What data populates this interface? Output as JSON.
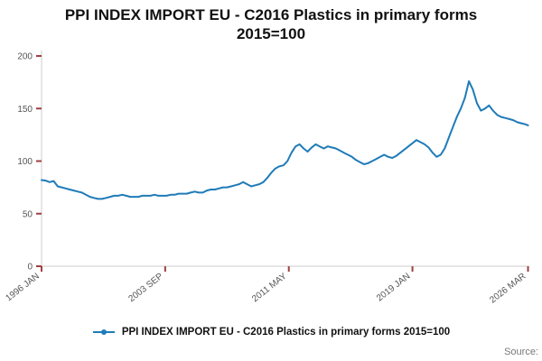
{
  "chart": {
    "title_line1": "PPI INDEX IMPORT EU - C2016 Plastics in primary forms",
    "title_line2": "2015=100",
    "source_label": "Source:"
  },
  "chart_data": {
    "type": "line",
    "title": "PPI INDEX IMPORT EU - C2016 Plastics in primary forms 2015=100",
    "legend": "PPI INDEX IMPORT EU - C2016 Plastics in primary forms 2015=100",
    "line_color": "#1f7bb8",
    "tick_color": "#a04040",
    "axis_color": "#cccccc",
    "grid": false,
    "legend_position": "bottom",
    "xlabel": "",
    "ylabel": "",
    "xlim": [
      1996.0,
      2026.25
    ],
    "ylim": [
      0,
      200
    ],
    "y_ticks": [
      0,
      50,
      100,
      150,
      200
    ],
    "x_ticks": [
      {
        "x": 1996.0,
        "label": "1996 JAN"
      },
      {
        "x": 2003.667,
        "label": "2003 SEP"
      },
      {
        "x": 2011.333,
        "label": "2011 MAY"
      },
      {
        "x": 2019.0,
        "label": "2019 JAN"
      },
      {
        "x": 2026.167,
        "label": "2026 MAR"
      }
    ],
    "points": [
      [
        1996.0,
        82
      ],
      [
        1996.25,
        81.5
      ],
      [
        1996.5,
        80
      ],
      [
        1996.75,
        81
      ],
      [
        1997.0,
        76
      ],
      [
        1997.25,
        75
      ],
      [
        1997.5,
        74
      ],
      [
        1997.75,
        73
      ],
      [
        1998.0,
        72
      ],
      [
        1998.25,
        71
      ],
      [
        1998.5,
        70
      ],
      [
        1998.75,
        68
      ],
      [
        1999.0,
        66
      ],
      [
        1999.25,
        65
      ],
      [
        1999.5,
        64
      ],
      [
        1999.75,
        64
      ],
      [
        2000.0,
        65
      ],
      [
        2000.25,
        66
      ],
      [
        2000.5,
        67
      ],
      [
        2000.75,
        67
      ],
      [
        2001.0,
        68
      ],
      [
        2001.25,
        67
      ],
      [
        2001.5,
        66
      ],
      [
        2001.75,
        66
      ],
      [
        2002.0,
        66
      ],
      [
        2002.25,
        67
      ],
      [
        2002.5,
        67
      ],
      [
        2002.75,
        67
      ],
      [
        2003.0,
        68
      ],
      [
        2003.25,
        67
      ],
      [
        2003.5,
        67
      ],
      [
        2003.75,
        67
      ],
      [
        2004.0,
        68
      ],
      [
        2004.25,
        68
      ],
      [
        2004.5,
        69
      ],
      [
        2004.75,
        69
      ],
      [
        2005.0,
        69
      ],
      [
        2005.25,
        70
      ],
      [
        2005.5,
        71
      ],
      [
        2005.75,
        70
      ],
      [
        2006.0,
        70
      ],
      [
        2006.25,
        72
      ],
      [
        2006.5,
        73
      ],
      [
        2006.75,
        73
      ],
      [
        2007.0,
        74
      ],
      [
        2007.25,
        75
      ],
      [
        2007.5,
        75
      ],
      [
        2007.75,
        76
      ],
      [
        2008.0,
        77
      ],
      [
        2008.25,
        78
      ],
      [
        2008.5,
        80
      ],
      [
        2008.75,
        78
      ],
      [
        2009.0,
        76
      ],
      [
        2009.25,
        77
      ],
      [
        2009.5,
        78
      ],
      [
        2009.75,
        80
      ],
      [
        2010.0,
        84
      ],
      [
        2010.25,
        89
      ],
      [
        2010.5,
        93
      ],
      [
        2010.75,
        95
      ],
      [
        2011.0,
        96
      ],
      [
        2011.25,
        100
      ],
      [
        2011.5,
        108
      ],
      [
        2011.75,
        114
      ],
      [
        2012.0,
        116
      ],
      [
        2012.25,
        112
      ],
      [
        2012.5,
        109
      ],
      [
        2012.75,
        113
      ],
      [
        2013.0,
        116
      ],
      [
        2013.25,
        114
      ],
      [
        2013.5,
        112
      ],
      [
        2013.75,
        114
      ],
      [
        2014.0,
        113
      ],
      [
        2014.25,
        112
      ],
      [
        2014.5,
        110
      ],
      [
        2014.75,
        108
      ],
      [
        2015.0,
        106
      ],
      [
        2015.25,
        104
      ],
      [
        2015.5,
        101
      ],
      [
        2015.75,
        99
      ],
      [
        2016.0,
        97
      ],
      [
        2016.25,
        98
      ],
      [
        2016.5,
        100
      ],
      [
        2016.75,
        102
      ],
      [
        2017.0,
        104
      ],
      [
        2017.25,
        106
      ],
      [
        2017.5,
        104
      ],
      [
        2017.75,
        103
      ],
      [
        2018.0,
        105
      ],
      [
        2018.25,
        108
      ],
      [
        2018.5,
        111
      ],
      [
        2018.75,
        114
      ],
      [
        2019.0,
        117
      ],
      [
        2019.25,
        120
      ],
      [
        2019.5,
        118
      ],
      [
        2019.75,
        116
      ],
      [
        2020.0,
        113
      ],
      [
        2020.25,
        108
      ],
      [
        2020.5,
        104
      ],
      [
        2020.75,
        106
      ],
      [
        2021.0,
        112
      ],
      [
        2021.25,
        122
      ],
      [
        2021.5,
        132
      ],
      [
        2021.75,
        142
      ],
      [
        2022.0,
        150
      ],
      [
        2022.25,
        160
      ],
      [
        2022.5,
        176
      ],
      [
        2022.75,
        168
      ],
      [
        2023.0,
        155
      ],
      [
        2023.25,
        148
      ],
      [
        2023.5,
        150
      ],
      [
        2023.75,
        153
      ],
      [
        2024.0,
        148
      ],
      [
        2024.25,
        144
      ],
      [
        2024.5,
        142
      ],
      [
        2024.75,
        141
      ],
      [
        2025.0,
        140
      ],
      [
        2025.25,
        139
      ],
      [
        2025.5,
        137
      ],
      [
        2025.75,
        136
      ],
      [
        2026.0,
        135
      ],
      [
        2026.17,
        134
      ]
    ]
  }
}
